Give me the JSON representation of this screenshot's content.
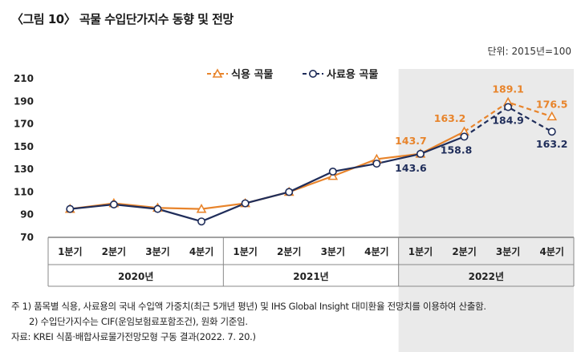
{
  "title": "〈그림 10〉 곡물 수입단가지수 동향 및 전망",
  "unit": "단위: 2015년=100",
  "notes": [
    "주 1) 품목별 식용, 사료용의 국내 수입액 가중치(최근 5개년 평년) 및 IHS Global Insight 대미환율 전망치를 이용하여 산출함.",
    "2) 수입단가지수는 CIF(운임보험료포함조건), 원화 기준임.",
    "자료: KREI 식품·배합사료물가전망모형 구동 결과(2022. 7. 20.)"
  ],
  "colors": {
    "food": "#E8842B",
    "feed": "#1F2D5A",
    "band": "#D9D9D9"
  },
  "chart_data": {
    "type": "line",
    "categories": [
      "1분기",
      "2분기",
      "3분기",
      "4분기",
      "1분기",
      "2분기",
      "3분기",
      "4분기",
      "1분기",
      "2분기",
      "3분기",
      "4분기"
    ],
    "groups": [
      {
        "label": "2020년",
        "span": 4
      },
      {
        "label": "2021년",
        "span": 4
      },
      {
        "label": "2022년",
        "span": 4
      }
    ],
    "yticks": [
      70,
      90,
      110,
      130,
      150,
      170,
      190,
      210
    ],
    "ylim": [
      70,
      210
    ],
    "legend_position": "top",
    "forecast_from_index": 9,
    "series": [
      {
        "name": "식용 곡물",
        "marker": "triangle",
        "values": [
          95,
          100,
          96,
          95,
          100,
          110,
          124,
          139,
          143.7,
          163.2,
          189.1,
          176.5
        ],
        "labels": {
          "8": "143.7",
          "9": "163.2",
          "10": "189.1",
          "11": "176.5"
        }
      },
      {
        "name": "사료용 곡물",
        "marker": "circle",
        "values": [
          95,
          99,
          95,
          84,
          100,
          110,
          128,
          135,
          143.6,
          158.8,
          184.9,
          163.2
        ],
        "labels": {
          "8": "143.6",
          "9": "158.8",
          "10": "184.9",
          "11": "163.2"
        }
      }
    ]
  }
}
